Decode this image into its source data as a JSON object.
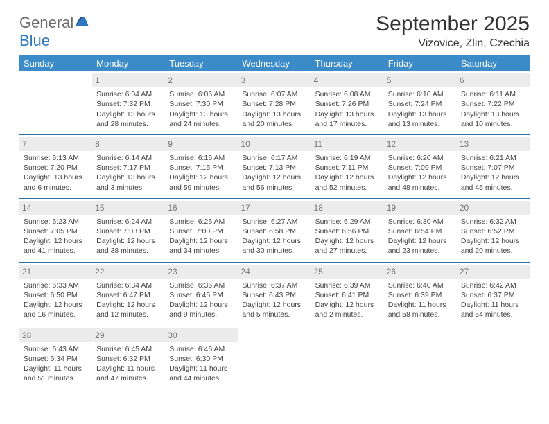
{
  "logo": {
    "word1": "General",
    "word2": "Blue"
  },
  "title": "September 2025",
  "subtitle": "Vizovice, Zlin, Czechia",
  "colors": {
    "header_bg": "#3b8bc9",
    "header_text": "#ffffff",
    "daynum_bg": "#ececec",
    "daynum_text": "#777777",
    "row_divider": "#2f6fa8",
    "body_text": "#444444",
    "logo_gray": "#6b6b6b",
    "logo_blue": "#2f78bf"
  },
  "weekdays": [
    "Sunday",
    "Monday",
    "Tuesday",
    "Wednesday",
    "Thursday",
    "Friday",
    "Saturday"
  ],
  "weeks": [
    [
      null,
      {
        "n": "1",
        "sr": "6:04 AM",
        "ss": "7:32 PM",
        "dl": "13 hours and 28 minutes."
      },
      {
        "n": "2",
        "sr": "6:06 AM",
        "ss": "7:30 PM",
        "dl": "13 hours and 24 minutes."
      },
      {
        "n": "3",
        "sr": "6:07 AM",
        "ss": "7:28 PM",
        "dl": "13 hours and 20 minutes."
      },
      {
        "n": "4",
        "sr": "6:08 AM",
        "ss": "7:26 PM",
        "dl": "13 hours and 17 minutes."
      },
      {
        "n": "5",
        "sr": "6:10 AM",
        "ss": "7:24 PM",
        "dl": "13 hours and 13 minutes."
      },
      {
        "n": "6",
        "sr": "6:11 AM",
        "ss": "7:22 PM",
        "dl": "13 hours and 10 minutes."
      }
    ],
    [
      {
        "n": "7",
        "sr": "6:13 AM",
        "ss": "7:20 PM",
        "dl": "13 hours and 6 minutes."
      },
      {
        "n": "8",
        "sr": "6:14 AM",
        "ss": "7:17 PM",
        "dl": "13 hours and 3 minutes."
      },
      {
        "n": "9",
        "sr": "6:16 AM",
        "ss": "7:15 PM",
        "dl": "12 hours and 59 minutes."
      },
      {
        "n": "10",
        "sr": "6:17 AM",
        "ss": "7:13 PM",
        "dl": "12 hours and 56 minutes."
      },
      {
        "n": "11",
        "sr": "6:19 AM",
        "ss": "7:11 PM",
        "dl": "12 hours and 52 minutes."
      },
      {
        "n": "12",
        "sr": "6:20 AM",
        "ss": "7:09 PM",
        "dl": "12 hours and 48 minutes."
      },
      {
        "n": "13",
        "sr": "6:21 AM",
        "ss": "7:07 PM",
        "dl": "12 hours and 45 minutes."
      }
    ],
    [
      {
        "n": "14",
        "sr": "6:23 AM",
        "ss": "7:05 PM",
        "dl": "12 hours and 41 minutes."
      },
      {
        "n": "15",
        "sr": "6:24 AM",
        "ss": "7:03 PM",
        "dl": "12 hours and 38 minutes."
      },
      {
        "n": "16",
        "sr": "6:26 AM",
        "ss": "7:00 PM",
        "dl": "12 hours and 34 minutes."
      },
      {
        "n": "17",
        "sr": "6:27 AM",
        "ss": "6:58 PM",
        "dl": "12 hours and 30 minutes."
      },
      {
        "n": "18",
        "sr": "6:29 AM",
        "ss": "6:56 PM",
        "dl": "12 hours and 27 minutes."
      },
      {
        "n": "19",
        "sr": "6:30 AM",
        "ss": "6:54 PM",
        "dl": "12 hours and 23 minutes."
      },
      {
        "n": "20",
        "sr": "6:32 AM",
        "ss": "6:52 PM",
        "dl": "12 hours and 20 minutes."
      }
    ],
    [
      {
        "n": "21",
        "sr": "6:33 AM",
        "ss": "6:50 PM",
        "dl": "12 hours and 16 minutes."
      },
      {
        "n": "22",
        "sr": "6:34 AM",
        "ss": "6:47 PM",
        "dl": "12 hours and 12 minutes."
      },
      {
        "n": "23",
        "sr": "6:36 AM",
        "ss": "6:45 PM",
        "dl": "12 hours and 9 minutes."
      },
      {
        "n": "24",
        "sr": "6:37 AM",
        "ss": "6:43 PM",
        "dl": "12 hours and 5 minutes."
      },
      {
        "n": "25",
        "sr": "6:39 AM",
        "ss": "6:41 PM",
        "dl": "12 hours and 2 minutes."
      },
      {
        "n": "26",
        "sr": "6:40 AM",
        "ss": "6:39 PM",
        "dl": "11 hours and 58 minutes."
      },
      {
        "n": "27",
        "sr": "6:42 AM",
        "ss": "6:37 PM",
        "dl": "11 hours and 54 minutes."
      }
    ],
    [
      {
        "n": "28",
        "sr": "6:43 AM",
        "ss": "6:34 PM",
        "dl": "11 hours and 51 minutes."
      },
      {
        "n": "29",
        "sr": "6:45 AM",
        "ss": "6:32 PM",
        "dl": "11 hours and 47 minutes."
      },
      {
        "n": "30",
        "sr": "6:46 AM",
        "ss": "6:30 PM",
        "dl": "11 hours and 44 minutes."
      },
      null,
      null,
      null,
      null
    ]
  ],
  "labels": {
    "sunrise": "Sunrise:",
    "sunset": "Sunset:",
    "daylight": "Daylight:"
  }
}
